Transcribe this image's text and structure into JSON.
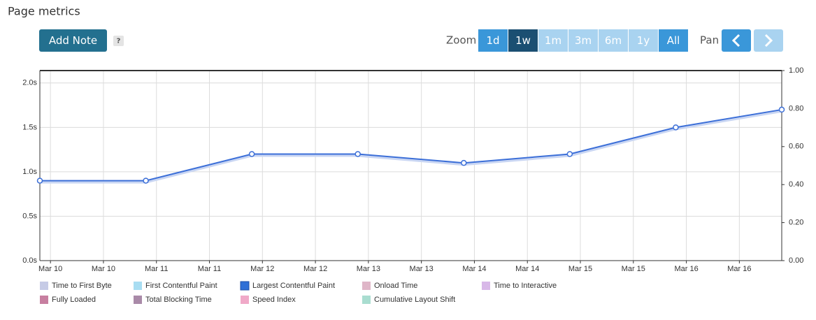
{
  "ui": {
    "title": "Page metrics",
    "add_note": "Add Note",
    "help": "?",
    "zoom_label": "Zoom",
    "zoom_options": [
      {
        "label": "1d",
        "state": "enabled"
      },
      {
        "label": "1w",
        "state": "selected"
      },
      {
        "label": "1m",
        "state": "disabled"
      },
      {
        "label": "3m",
        "state": "disabled"
      },
      {
        "label": "6m",
        "state": "disabled"
      },
      {
        "label": "1y",
        "state": "disabled"
      },
      {
        "label": "All",
        "state": "enabled"
      }
    ],
    "pan_label": "Pan"
  },
  "chart_data": {
    "type": "line",
    "x": [
      9.9,
      10.9,
      11.9,
      12.9,
      13.9,
      14.9,
      15.9,
      16.9
    ],
    "series": [
      {
        "name": "Largest Contentful Paint",
        "color": "#3c6fd8",
        "values": [
          0.9,
          0.9,
          1.2,
          1.2,
          1.1,
          1.2,
          1.5,
          1.7
        ]
      }
    ],
    "xlim": [
      9.9,
      16.9
    ],
    "xticks": [
      {
        "value": 10,
        "label": "Mar 10"
      },
      {
        "value": 10.5,
        "label": "Mar 10"
      },
      {
        "value": 11,
        "label": "Mar 11"
      },
      {
        "value": 11.5,
        "label": "Mar 11"
      },
      {
        "value": 12,
        "label": "Mar 12"
      },
      {
        "value": 12.5,
        "label": "Mar 12"
      },
      {
        "value": 13,
        "label": "Mar 13"
      },
      {
        "value": 13.5,
        "label": "Mar 13"
      },
      {
        "value": 14,
        "label": "Mar 14"
      },
      {
        "value": 14.5,
        "label": "Mar 14"
      },
      {
        "value": 15,
        "label": "Mar 15"
      },
      {
        "value": 15.5,
        "label": "Mar 15"
      },
      {
        "value": 16,
        "label": "Mar 16"
      },
      {
        "value": 16.5,
        "label": "Mar 16"
      }
    ],
    "ylim": [
      0,
      2.14
    ],
    "yticks": [
      {
        "value": 0,
        "label": "0.0s"
      },
      {
        "value": 0.5,
        "label": "0.5s"
      },
      {
        "value": 1,
        "label": "1.0s"
      },
      {
        "value": 1.5,
        "label": "1.5s"
      },
      {
        "value": 2,
        "label": "2.0s"
      }
    ],
    "y2lim": [
      0,
      1
    ],
    "y2ticks": [
      {
        "value": 0,
        "label": "0.00"
      },
      {
        "value": 0.2,
        "label": "0.20"
      },
      {
        "value": 0.4,
        "label": "0.40"
      },
      {
        "value": 0.6,
        "label": "0.60"
      },
      {
        "value": 0.8,
        "label": "0.80"
      },
      {
        "value": 1,
        "label": "1.00"
      }
    ],
    "grid": true,
    "legend": [
      {
        "name": "Time to First Byte",
        "color": "#c6cbe6",
        "active": false
      },
      {
        "name": "First Contentful Paint",
        "color": "#a8ddf2",
        "active": false
      },
      {
        "name": "Largest Contentful Paint",
        "color": "#2f6fd6",
        "active": true
      },
      {
        "name": "Onload Time",
        "color": "#dfb6c8",
        "active": false
      },
      {
        "name": "Time to Interactive",
        "color": "#d8b8e8",
        "active": false
      },
      {
        "name": "Fully Loaded",
        "color": "#c77fa0",
        "active": false
      },
      {
        "name": "Total Blocking Time",
        "color": "#a98aa8",
        "active": false
      },
      {
        "name": "Speed Index",
        "color": "#f0a9c8",
        "active": false
      },
      {
        "name": "Cumulative Layout Shift",
        "color": "#a9ddd0",
        "active": false
      }
    ]
  }
}
